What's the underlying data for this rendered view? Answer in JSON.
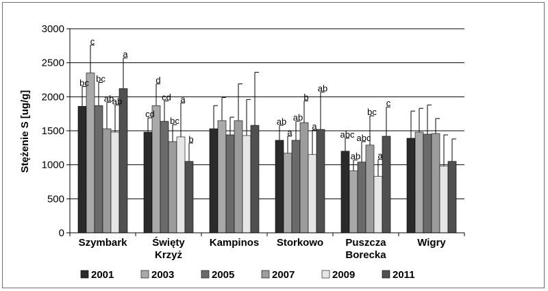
{
  "chart_data": {
    "type": "bar",
    "ylabel": "Stężenie S [ug/g]",
    "ylim": [
      0,
      3000
    ],
    "yticks": [
      "0",
      "500",
      "1000",
      "1500",
      "2000",
      "2500",
      "3000"
    ],
    "grid": true,
    "legend_position": "bottom",
    "categories": [
      [
        "Szymbark"
      ],
      [
        "Święty",
        "Krzyż"
      ],
      [
        "Kampinos"
      ],
      [
        "Storkowo"
      ],
      [
        "Puszcza",
        "Borecka"
      ],
      [
        "Wigry"
      ]
    ],
    "series": [
      {
        "name": "2001",
        "color": "#2b2b2b",
        "values": [
          1860,
          1480,
          1530,
          1360,
          1200,
          1390
        ],
        "errors": [
          290,
          210,
          340,
          220,
          190,
          400
        ],
        "labels": [
          "bc",
          "cd",
          "",
          "ab",
          "abc",
          ""
        ]
      },
      {
        "name": "2003",
        "color": "#a9a9a9",
        "values": [
          2350,
          1870,
          1650,
          1170,
          910,
          1480
        ],
        "errors": [
          410,
          320,
          340,
          250,
          160,
          350
        ],
        "labels": [
          "c",
          "d",
          "",
          "a",
          "ab",
          ""
        ]
      },
      {
        "name": "2005",
        "color": "#6b6b6b",
        "values": [
          1870,
          1640,
          1440,
          1360,
          1040,
          1450
        ],
        "errors": [
          340,
          300,
          260,
          280,
          300,
          430
        ],
        "labels": [
          "bc",
          "cd",
          "",
          "ab",
          "abc",
          ""
        ]
      },
      {
        "name": "2007",
        "color": "#9c9c9c",
        "values": [
          1530,
          1340,
          1650,
          1620,
          1290,
          1460
        ],
        "errors": [
          390,
          250,
          540,
          320,
          430,
          220
        ],
        "labels": [
          "ab",
          "bc",
          "",
          "b",
          "bc",
          ""
        ]
      },
      {
        "name": "2009",
        "color": "#e6e6e6",
        "values": [
          1480,
          1410,
          1430,
          1150,
          830,
          980
        ],
        "errors": [
          400,
          500,
          530,
          360,
          250,
          460
        ],
        "labels": [
          "ab",
          "a",
          "",
          "a",
          "a",
          ""
        ]
      },
      {
        "name": "2011",
        "color": "#505050",
        "values": [
          2120,
          1050,
          1580,
          1520,
          1420,
          1050
        ],
        "errors": [
          450,
          270,
          780,
          550,
          430,
          330
        ],
        "labels": [
          "a",
          "b",
          "",
          "ab",
          "c",
          ""
        ]
      }
    ]
  }
}
